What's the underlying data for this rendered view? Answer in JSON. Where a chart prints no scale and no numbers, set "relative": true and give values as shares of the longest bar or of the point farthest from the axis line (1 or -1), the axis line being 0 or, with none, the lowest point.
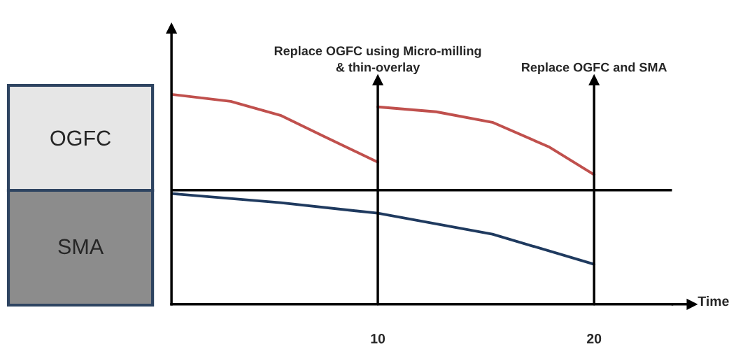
{
  "chart_data": {
    "type": "line",
    "relative": true,
    "xlabel": "Time",
    "xlim": [
      0.46,
      23.6
    ],
    "xticks": [
      10,
      20
    ],
    "grid": false,
    "line_style": "solid",
    "marker": "none",
    "series": [
      {
        "color": "#c0504d",
        "x": [
          0.46,
          3.2,
          5.5,
          7.5,
          10
        ],
        "values": [
          1.0,
          0.927,
          0.781,
          0.562,
          0.292
        ]
      },
      {
        "color": "#c0504d",
        "x": [
          10,
          12.7,
          15.3,
          17.9,
          20
        ],
        "values": [
          0.869,
          0.818,
          0.708,
          0.453,
          0.161
        ]
      },
      {
        "color": "#1f3a5f",
        "x": [
          0.46,
          5.5,
          10,
          15.3,
          20
        ],
        "values": [
          -0.036,
          -0.131,
          -0.241,
          -0.46,
          -0.774
        ]
      }
    ],
    "ref_lines": [
      {
        "axis": "x",
        "value": 10,
        "label": "Replace OGFC using Micro-milling\n& thin-overlay",
        "color": "#000000"
      },
      {
        "axis": "x",
        "value": 20,
        "label": "Replace OGFC and SMA",
        "color": "#000000"
      }
    ],
    "annotations": [
      "OGFC",
      "SMA"
    ]
  }
}
